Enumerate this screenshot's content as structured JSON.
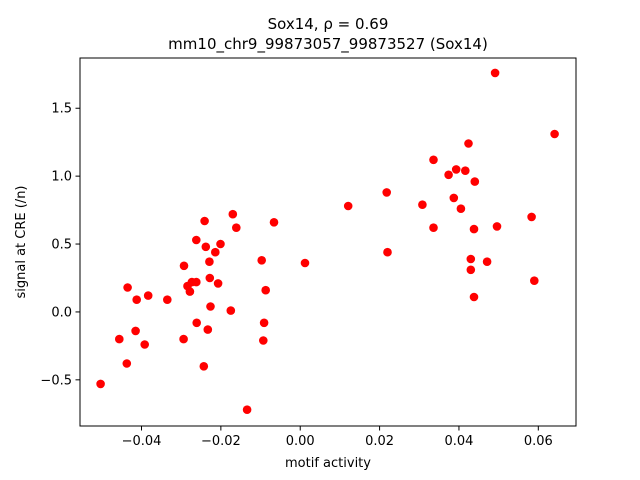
{
  "chart_data": {
    "type": "scatter",
    "title_line1": "Sox14, ρ = 0.69",
    "title_line2": "mm10_chr9_99873057_99873527 (Sox14)",
    "xlabel": "motif activity",
    "ylabel": "signal at CRE (/n)",
    "xlim": [
      -0.0555,
      0.0695
    ],
    "ylim": [
      -0.84,
      1.87
    ],
    "xticks": [
      -0.04,
      -0.02,
      0.0,
      0.02,
      0.04,
      0.06
    ],
    "xtick_labels": [
      "−0.04",
      "−0.02",
      "0.00",
      "0.02",
      "0.04",
      "0.06"
    ],
    "yticks": [
      -0.5,
      0.0,
      0.5,
      1.0,
      1.5
    ],
    "ytick_labels": [
      "−0.5",
      "0.0",
      "0.5",
      "1.0",
      "1.5"
    ],
    "grid": false,
    "marker_color": "#ff0000",
    "points": [
      {
        "x": -0.0503,
        "y": -0.53
      },
      {
        "x": -0.0456,
        "y": -0.2
      },
      {
        "x": -0.0435,
        "y": 0.18
      },
      {
        "x": -0.0437,
        "y": -0.38
      },
      {
        "x": -0.0412,
        "y": 0.09
      },
      {
        "x": -0.0415,
        "y": -0.14
      },
      {
        "x": -0.0392,
        "y": -0.24
      },
      {
        "x": -0.0383,
        "y": 0.12
      },
      {
        "x": -0.0335,
        "y": 0.09
      },
      {
        "x": -0.0293,
        "y": 0.34
      },
      {
        "x": -0.0284,
        "y": 0.19
      },
      {
        "x": -0.0278,
        "y": 0.15
      },
      {
        "x": -0.0273,
        "y": 0.22
      },
      {
        "x": -0.0262,
        "y": 0.22
      },
      {
        "x": -0.0294,
        "y": -0.2
      },
      {
        "x": -0.0262,
        "y": 0.53
      },
      {
        "x": -0.0261,
        "y": -0.08
      },
      {
        "x": -0.0241,
        "y": 0.67
      },
      {
        "x": -0.0238,
        "y": 0.48
      },
      {
        "x": -0.0243,
        "y": -0.4
      },
      {
        "x": -0.0233,
        "y": -0.13
      },
      {
        "x": -0.0229,
        "y": 0.37
      },
      {
        "x": -0.0228,
        "y": 0.25
      },
      {
        "x": -0.0226,
        "y": 0.04
      },
      {
        "x": -0.0214,
        "y": 0.44
      },
      {
        "x": -0.0207,
        "y": 0.21
      },
      {
        "x": -0.0201,
        "y": 0.5
      },
      {
        "x": -0.0175,
        "y": 0.01
      },
      {
        "x": -0.017,
        "y": 0.72
      },
      {
        "x": -0.0161,
        "y": 0.62
      },
      {
        "x": -0.0134,
        "y": -0.72
      },
      {
        "x": -0.0097,
        "y": 0.38
      },
      {
        "x": -0.0093,
        "y": -0.21
      },
      {
        "x": -0.0091,
        "y": -0.08
      },
      {
        "x": -0.0087,
        "y": 0.16
      },
      {
        "x": -0.0066,
        "y": 0.66
      },
      {
        "x": 0.0012,
        "y": 0.36
      },
      {
        "x": 0.0121,
        "y": 0.78
      },
      {
        "x": 0.0218,
        "y": 0.88
      },
      {
        "x": 0.022,
        "y": 0.44
      },
      {
        "x": 0.0308,
        "y": 0.79
      },
      {
        "x": 0.0336,
        "y": 1.12
      },
      {
        "x": 0.0336,
        "y": 0.62
      },
      {
        "x": 0.0374,
        "y": 1.01
      },
      {
        "x": 0.0387,
        "y": 0.84
      },
      {
        "x": 0.0393,
        "y": 1.05
      },
      {
        "x": 0.0405,
        "y": 0.76
      },
      {
        "x": 0.0416,
        "y": 1.04
      },
      {
        "x": 0.0424,
        "y": 1.24
      },
      {
        "x": 0.043,
        "y": 0.39
      },
      {
        "x": 0.043,
        "y": 0.31
      },
      {
        "x": 0.0438,
        "y": 0.61
      },
      {
        "x": 0.0438,
        "y": 0.11
      },
      {
        "x": 0.044,
        "y": 0.96
      },
      {
        "x": 0.0471,
        "y": 0.37
      },
      {
        "x": 0.0491,
        "y": 1.76
      },
      {
        "x": 0.0496,
        "y": 0.63
      },
      {
        "x": 0.0583,
        "y": 0.7
      },
      {
        "x": 0.059,
        "y": 0.23
      },
      {
        "x": 0.0641,
        "y": 1.31
      }
    ]
  }
}
